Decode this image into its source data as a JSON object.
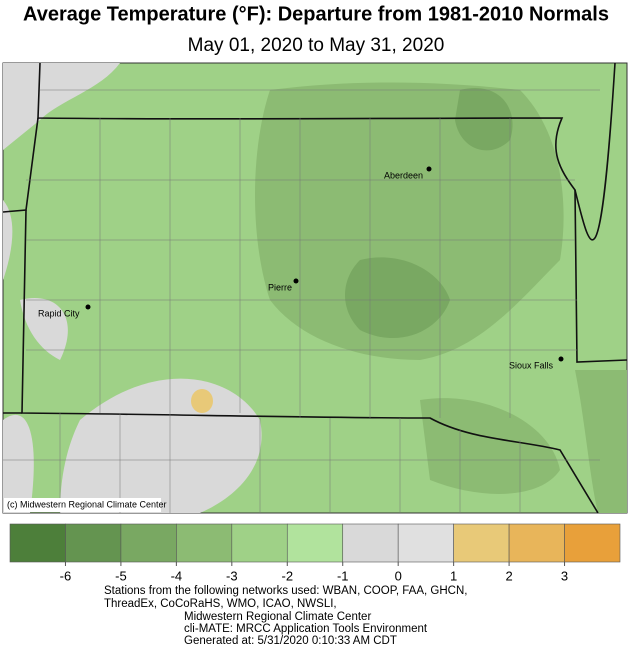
{
  "title": "Average Temperature (°F): Departure from 1981-2010 Normals",
  "subtitle": "May 01, 2020 to May 31, 2020",
  "map": {
    "credit": "(c) Midwestern Regional Climate Center",
    "cities": [
      {
        "name": "Aberdeen"
      },
      {
        "name": "Pierre"
      },
      {
        "name": "Rapid City"
      },
      {
        "name": "Sioux Falls"
      }
    ]
  },
  "legend": {
    "colors": [
      "#4d7f3a",
      "#649450",
      "#79a862",
      "#8cbb73",
      "#9fd187",
      "#b1e39d",
      "#d9d9d9",
      "#e0e0e0",
      "#e8c978",
      "#e8b55a",
      "#e8a03a"
    ],
    "ticks": [
      -6,
      -5,
      -4,
      -3,
      -2,
      -1,
      0,
      1,
      2,
      3
    ]
  },
  "footer": [
    "Stations from the following networks used: WBAN, COOP, FAA, GHCN,",
    "ThreadEx, CoCoRaHS, WMO, ICAO, NWSLI,",
    "Midwestern Regional Climate Center",
    "cli-MATE: MRCC Application Tools Environment",
    "Generated at: 5/31/2020 0:10:33 AM CDT"
  ]
}
